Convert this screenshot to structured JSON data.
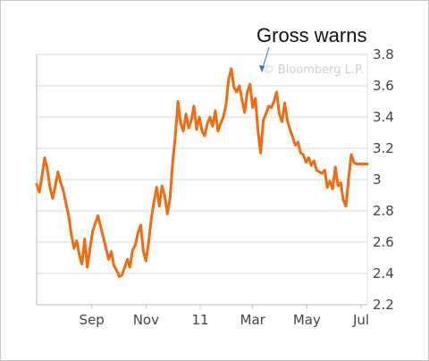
{
  "chart_data": {
    "type": "line",
    "title": "",
    "xlabel": "",
    "ylabel": "",
    "x_tick_labels": [
      "Sep",
      "Nov",
      "11",
      "Mar",
      "May",
      "Jul"
    ],
    "ylim": [
      2.2,
      3.8
    ],
    "y_ticks": [
      2.2,
      2.4,
      2.6,
      2.8,
      3.0,
      3.2,
      3.4,
      3.6,
      3.8
    ],
    "y_tick_labels": [
      "2.2",
      "2.4",
      "2.6",
      "2.8",
      "3",
      "3.2",
      "3.4",
      "3.6",
      "3.8"
    ],
    "grid": "horizontal",
    "y_axis_side": "right",
    "watermark": "© Bloomberg L.P.",
    "line_color": "#f26b0f",
    "annotation": {
      "text": "Gross warns",
      "at_x": "2011-03-01",
      "at_y": 3.6
    },
    "x_range": [
      "2010-07-01",
      "2011-07-08"
    ],
    "series": [
      {
        "x": [
          "2010-07-01",
          "2010-07-04",
          "2010-07-07",
          "2010-07-10",
          "2010-07-13",
          "2010-07-16",
          "2010-07-19",
          "2010-07-22",
          "2010-07-25",
          "2010-07-28",
          "2010-07-31",
          "2010-08-03",
          "2010-08-06",
          "2010-08-09",
          "2010-08-12",
          "2010-08-15",
          "2010-08-18",
          "2010-08-21",
          "2010-08-24",
          "2010-08-27",
          "2010-08-30",
          "2010-09-02",
          "2010-09-05",
          "2010-09-08",
          "2010-09-11",
          "2010-09-14",
          "2010-09-17",
          "2010-09-20",
          "2010-09-23",
          "2010-09-26",
          "2010-09-29",
          "2010-10-02",
          "2010-10-05",
          "2010-10-08",
          "2010-10-11",
          "2010-10-14",
          "2010-10-17",
          "2010-10-20",
          "2010-10-23",
          "2010-10-26",
          "2010-10-29",
          "2010-11-01",
          "2010-11-04",
          "2010-11-07",
          "2010-11-10",
          "2010-11-13",
          "2010-11-16",
          "2010-11-19",
          "2010-11-22",
          "2010-11-25",
          "2010-11-28",
          "2010-12-01",
          "2010-12-04",
          "2010-12-07",
          "2010-12-10",
          "2010-12-13",
          "2010-12-16",
          "2010-12-19",
          "2010-12-22",
          "2010-12-25",
          "2010-12-28",
          "2010-12-31",
          "2011-01-03",
          "2011-01-06",
          "2011-01-09",
          "2011-01-12",
          "2011-01-15",
          "2011-01-18",
          "2011-01-21",
          "2011-01-24",
          "2011-01-27",
          "2011-01-30",
          "2011-02-02",
          "2011-02-05",
          "2011-02-08",
          "2011-02-11",
          "2011-02-14",
          "2011-02-17",
          "2011-02-20",
          "2011-02-23",
          "2011-02-26",
          "2011-03-01",
          "2011-03-04",
          "2011-03-07",
          "2011-03-10",
          "2011-03-13",
          "2011-03-16",
          "2011-03-19",
          "2011-03-22",
          "2011-03-25",
          "2011-03-28",
          "2011-03-31",
          "2011-04-03",
          "2011-04-06",
          "2011-04-09",
          "2011-04-12",
          "2011-04-15",
          "2011-04-18",
          "2011-04-21",
          "2011-04-24",
          "2011-04-27",
          "2011-04-30",
          "2011-05-03",
          "2011-05-06",
          "2011-05-09",
          "2011-05-12",
          "2011-05-15",
          "2011-05-18",
          "2011-05-21",
          "2011-05-24",
          "2011-05-27",
          "2011-05-30",
          "2011-06-02",
          "2011-06-05",
          "2011-06-08",
          "2011-06-11",
          "2011-06-14",
          "2011-06-17",
          "2011-06-20",
          "2011-06-23",
          "2011-06-26",
          "2011-06-29",
          "2011-07-02",
          "2011-07-05",
          "2011-07-08"
        ],
        "values": [
          2.97,
          2.92,
          3.02,
          3.14,
          3.07,
          2.95,
          2.88,
          2.96,
          3.05,
          2.98,
          2.93,
          2.85,
          2.77,
          2.65,
          2.56,
          2.61,
          2.52,
          2.46,
          2.62,
          2.44,
          2.56,
          2.67,
          2.72,
          2.77,
          2.7,
          2.63,
          2.56,
          2.49,
          2.54,
          2.45,
          2.42,
          2.38,
          2.39,
          2.44,
          2.49,
          2.44,
          2.55,
          2.58,
          2.66,
          2.71,
          2.54,
          2.48,
          2.6,
          2.75,
          2.86,
          2.95,
          2.83,
          2.96,
          2.9,
          2.78,
          2.88,
          3.11,
          3.28,
          3.5,
          3.36,
          3.31,
          3.42,
          3.33,
          3.38,
          3.47,
          3.32,
          3.4,
          3.31,
          3.28,
          3.36,
          3.4,
          3.34,
          3.44,
          3.31,
          3.36,
          3.4,
          3.48,
          3.64,
          3.71,
          3.59,
          3.56,
          3.6,
          3.51,
          3.43,
          3.56,
          3.61,
          3.46,
          3.52,
          3.31,
          3.17,
          3.38,
          3.42,
          3.47,
          3.46,
          3.5,
          3.56,
          3.42,
          3.37,
          3.49,
          3.38,
          3.32,
          3.27,
          3.22,
          3.24,
          3.17,
          3.16,
          3.11,
          3.14,
          3.09,
          3.12,
          3.06,
          3.05,
          3.04,
          3.06,
          2.95,
          2.99,
          2.94,
          3.08,
          2.96,
          2.98,
          2.87,
          2.83,
          3.01,
          3.16,
          3.11,
          3.1,
          3.1,
          3.1,
          3.1,
          3.1
        ]
      }
    ]
  }
}
